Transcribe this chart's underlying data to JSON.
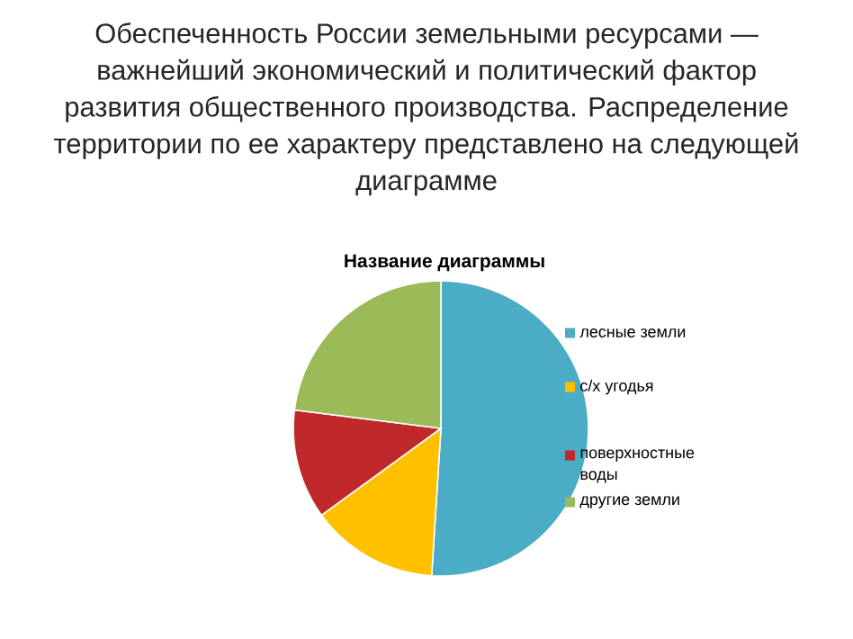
{
  "chart_data": {
    "type": "pie",
    "title": "Обеспеченность России земельными ресурсами — важнейший экономический и политический фактор развития общественного производства. Распределение территории по ее характеру представлено на следующей диаграмме",
    "subtitle": "Название диаграммы",
    "categories": [
      "лесные земли",
      "с/х угодья",
      "поверхностные воды",
      "другие земли"
    ],
    "values": [
      51,
      14,
      12,
      23
    ],
    "colors": [
      "#4bacc6",
      "#ffc000",
      "#c0292b",
      "#9bbb59"
    ],
    "legend": "right"
  }
}
